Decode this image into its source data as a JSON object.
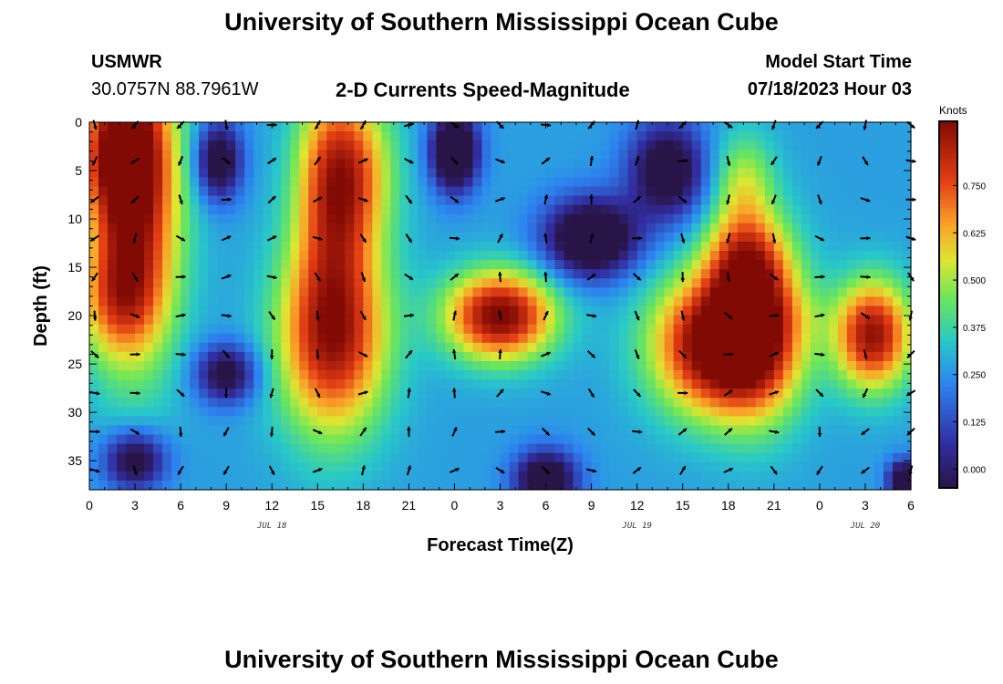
{
  "page": {
    "title_top": "University of Southern Mississippi Ocean Cube",
    "title_bottom": "University of Southern Mississippi Ocean Cube",
    "station": "USMWR",
    "coords": "30.0757N  88.7961W",
    "plot_title": "2-D Currents Speed-Magnitude",
    "model_label": "Model Start Time",
    "model_time": "07/18/2023 Hour 03"
  },
  "chart_data": {
    "type": "heatmap",
    "title": "2-D Currents Speed-Magnitude",
    "xlabel": "Forecast Time(Z)",
    "ylabel": "Depth (ft)",
    "x_tick_labels": [
      "0",
      "3",
      "6",
      "9",
      "12",
      "15",
      "18",
      "21",
      "0",
      "3",
      "6",
      "9",
      "12",
      "15",
      "18",
      "21",
      "0",
      "3",
      "6"
    ],
    "x_range_hours": [
      0,
      54
    ],
    "date_labels": [
      {
        "text": "JUL 18",
        "hour": 12
      },
      {
        "text": "JUL 19",
        "hour": 36
      },
      {
        "text": "JUL 20",
        "hour": 51
      }
    ],
    "y_ticks": [
      0,
      5,
      10,
      15,
      20,
      25,
      30,
      35
    ],
    "y_range": [
      0,
      38
    ],
    "colorbar": {
      "label": "Knots",
      "ticks": [
        "0.000",
        "0.125",
        "0.250",
        "0.375",
        "0.500",
        "0.625",
        "0.750"
      ],
      "range": [
        -0.05,
        0.92
      ]
    },
    "vector_times": [
      0,
      3,
      6,
      9,
      12,
      15,
      18,
      21,
      24,
      27,
      30,
      33,
      36,
      39,
      42,
      45,
      48,
      51,
      54
    ],
    "vector_depths": [
      0,
      4,
      8,
      12,
      16,
      20,
      24,
      28,
      32,
      36
    ],
    "speed_features": [
      {
        "t": 2,
        "d": 3,
        "rt": 2.5,
        "rd": 7,
        "v": 0.7
      },
      {
        "t": 3,
        "d": 8,
        "rt": 3.0,
        "rd": 16,
        "v": 0.85
      },
      {
        "t": 2,
        "d": 18,
        "rt": 2.5,
        "rd": 6,
        "v": 0.55
      },
      {
        "t": 0.5,
        "d": 20,
        "rt": 1.5,
        "rd": 5,
        "v": 0.3
      },
      {
        "t": 16,
        "d": 6,
        "rt": 2.5,
        "rd": 10,
        "v": 0.75
      },
      {
        "t": 16,
        "d": 22,
        "rt": 3.5,
        "rd": 10,
        "v": 0.9
      },
      {
        "t": 18,
        "d": 5,
        "rt": 2.5,
        "rd": 8,
        "v": 0.5
      },
      {
        "t": 27,
        "d": 20,
        "rt": 3.5,
        "rd": 4.5,
        "v": 0.95
      },
      {
        "t": 43,
        "d": 6,
        "rt": 2,
        "rd": 5,
        "v": 0.5
      },
      {
        "t": 43,
        "d": 14,
        "rt": 2.5,
        "rd": 5,
        "v": 0.6
      },
      {
        "t": 41,
        "d": 23,
        "rt": 4,
        "rd": 7,
        "v": 0.95
      },
      {
        "t": 44,
        "d": 21,
        "rt": 3,
        "rd": 9,
        "v": 0.8
      },
      {
        "t": 51.5,
        "d": 22,
        "rt": 2.5,
        "rd": 5.5,
        "v": 0.9
      },
      {
        "t": 47,
        "d": 20,
        "rt": 2,
        "rd": 2.5,
        "v": 0.3
      },
      {
        "t": 24,
        "d": 3,
        "rt": 1.5,
        "rd": 4,
        "v": -0.3
      },
      {
        "t": 33,
        "d": 12,
        "rt": 3,
        "rd": 4,
        "v": -0.25
      },
      {
        "t": 30,
        "d": 37,
        "rt": 2,
        "rd": 3,
        "v": -0.2
      },
      {
        "t": 38,
        "d": 5,
        "rt": 2.5,
        "rd": 5,
        "v": -0.15
      },
      {
        "t": 8.5,
        "d": 4,
        "rt": 1.5,
        "rd": 4,
        "v": -0.15
      },
      {
        "t": 9,
        "d": 26,
        "rt": 2,
        "rd": 3,
        "v": -0.1
      },
      {
        "t": 3,
        "d": 35,
        "rt": 2,
        "rd": 3,
        "v": -0.12
      },
      {
        "t": 53.5,
        "d": 37,
        "rt": 1,
        "rd": 2,
        "v": -0.2
      }
    ],
    "base_speed": 0.27
  },
  "colors": {
    "arrow": "#000000",
    "axis": "#000000",
    "background": "#ffffff"
  }
}
